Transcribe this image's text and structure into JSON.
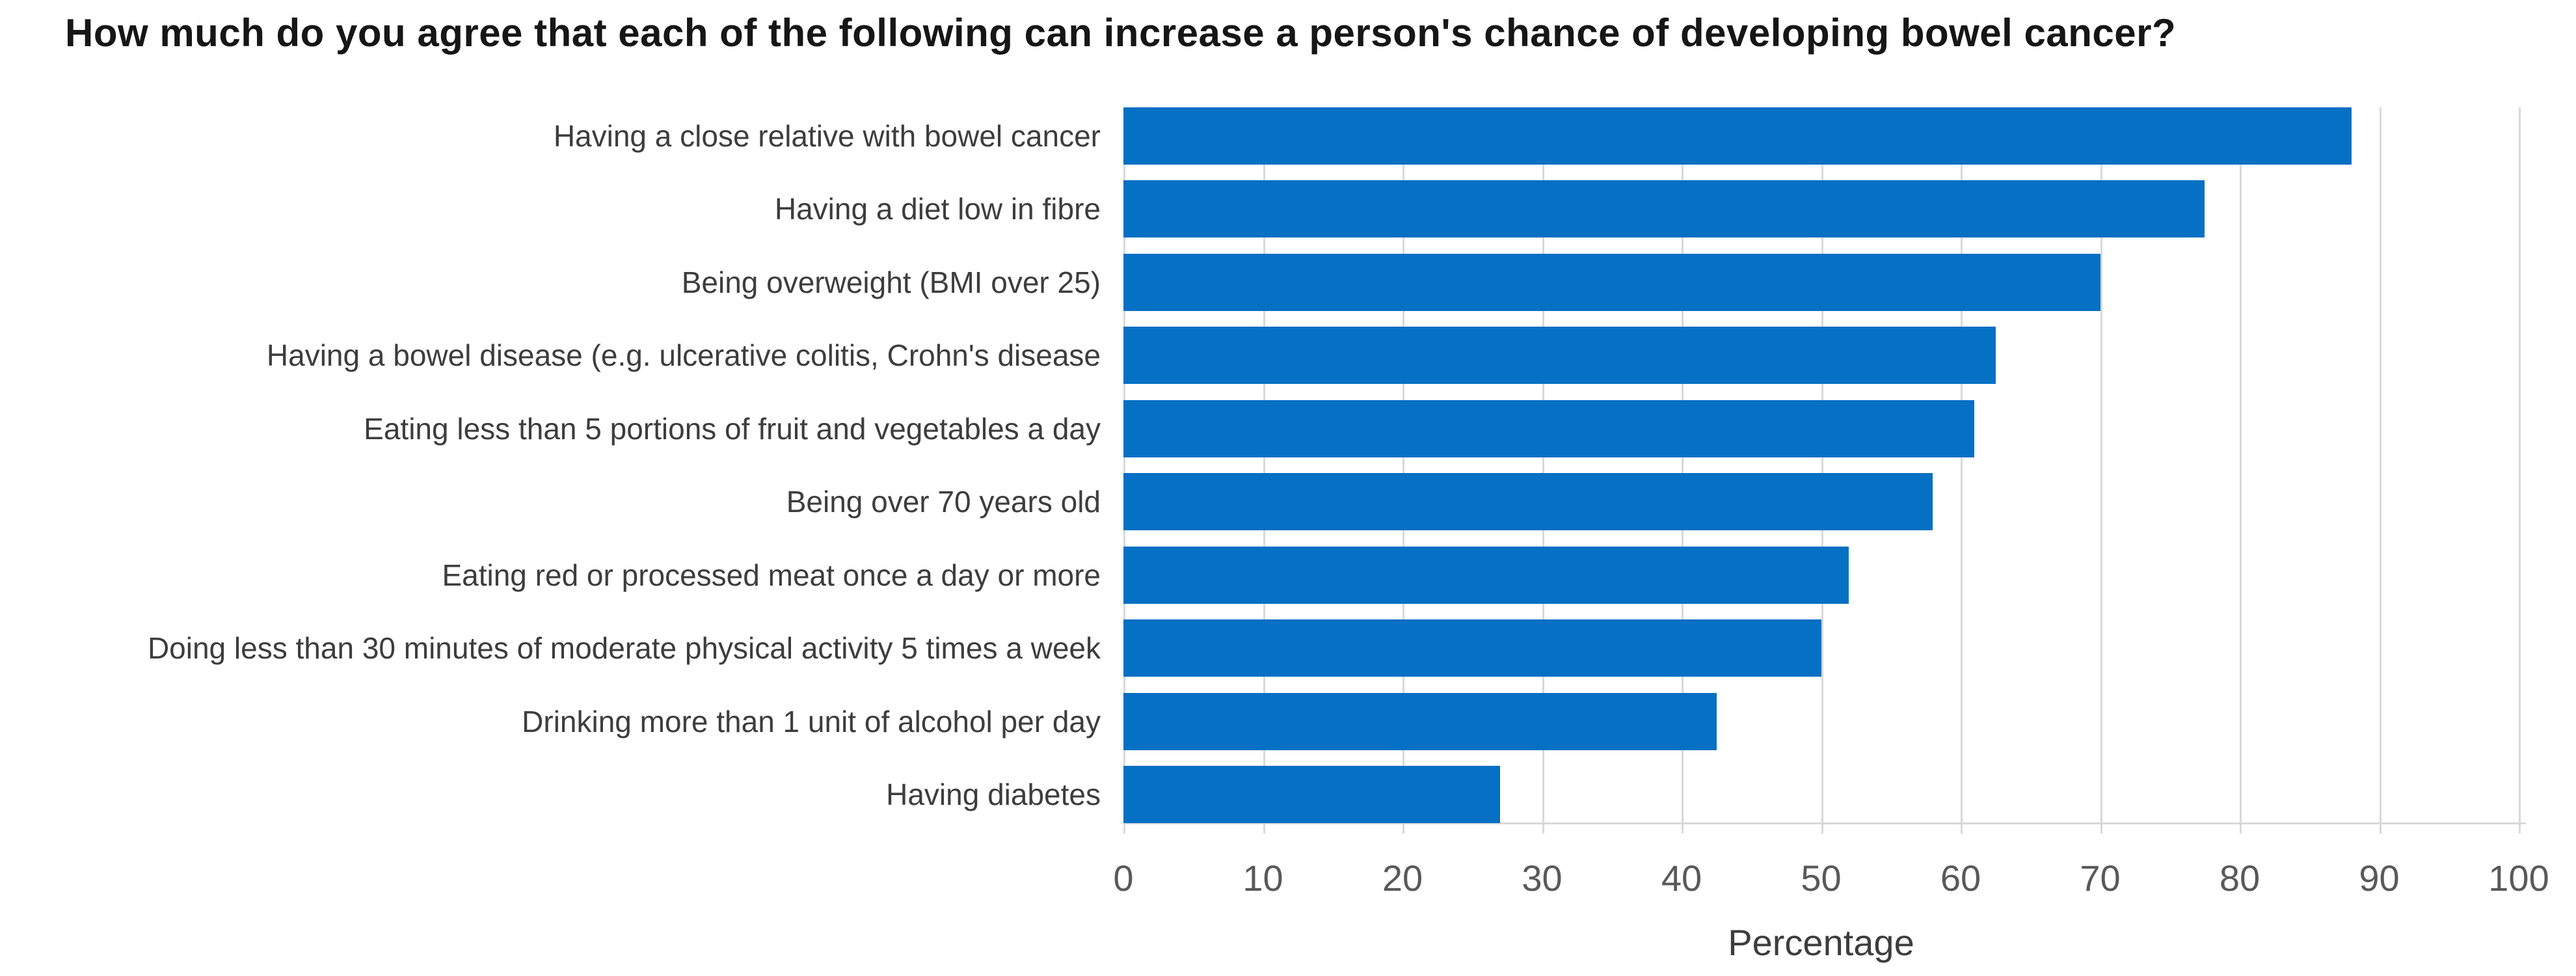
{
  "title": "How much do you agree that each of the following can increase a person's chance of developing bowel cancer?",
  "chart_data": {
    "type": "bar",
    "orientation": "horizontal",
    "title": "How much do you agree that each of the following can increase a person's chance of developing bowel cancer?",
    "categories": [
      "Having a close relative with bowel cancer",
      "Having a diet low in fibre",
      "Being overweight (BMI over 25)",
      "Having a bowel disease (e.g. ulcerative colitis, Crohn's disease",
      "Eating less than 5 portions of fruit and vegetables a day",
      "Being over 70 years old",
      "Eating red or processed meat once a day or more",
      "Doing less than 30 minutes of moderate physical activity 5 times a week",
      "Drinking more than 1 unit of alcohol per day",
      "Having diabetes"
    ],
    "values": [
      88,
      77.5,
      70,
      62.5,
      61,
      58,
      52,
      50,
      42.5,
      27
    ],
    "xlabel": "Percentage",
    "ylabel": "",
    "xlim": [
      0,
      100
    ],
    "xticks": [
      0,
      10,
      20,
      30,
      40,
      50,
      60,
      70,
      80,
      90,
      100
    ],
    "grid": "vertical-gridlines-on",
    "legend": "none",
    "bar_color": "#0570c4",
    "gridline_color": "#d9d9d9",
    "tick_label_color": "#595959",
    "category_label_color": "#3d3d3d",
    "title_color": "#161616"
  }
}
